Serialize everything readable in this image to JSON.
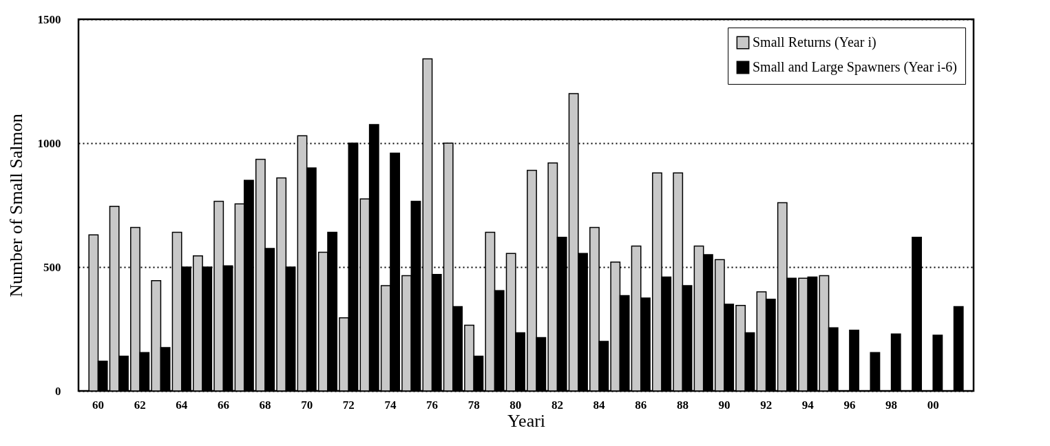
{
  "chart_data": {
    "type": "bar",
    "xlabel": "Yeari",
    "ylabel": "Number of Small Salmon",
    "categories": [
      "60",
      null,
      "62",
      null,
      "64",
      null,
      "66",
      null,
      "68",
      null,
      "70",
      null,
      "72",
      null,
      "74",
      null,
      "76",
      null,
      "78",
      null,
      "80",
      null,
      "82",
      null,
      "84",
      null,
      "86",
      null,
      "88",
      null,
      "90",
      null,
      "92",
      null,
      "94",
      null,
      "96",
      null,
      "98",
      null,
      "00",
      null
    ],
    "series": [
      {
        "name": "Small Returns (Year i)",
        "color": "#c8c8c8",
        "values": [
          630,
          745,
          660,
          445,
          640,
          545,
          765,
          755,
          935,
          860,
          1030,
          560,
          295,
          775,
          425,
          465,
          1340,
          1000,
          265,
          640,
          555,
          890,
          920,
          1200,
          660,
          520,
          585,
          880,
          880,
          585,
          530,
          345,
          400,
          760,
          455,
          465,
          null,
          null,
          null,
          null,
          null,
          null
        ]
      },
      {
        "name": "Small and Large Spawners (Year i-6)",
        "color": "#000000",
        "values": [
          120,
          140,
          155,
          175,
          500,
          500,
          505,
          850,
          575,
          500,
          900,
          640,
          1000,
          1075,
          960,
          765,
          470,
          340,
          140,
          405,
          235,
          215,
          620,
          555,
          200,
          385,
          375,
          460,
          425,
          550,
          350,
          235,
          370,
          455,
          460,
          255,
          245,
          155,
          230,
          620,
          225,
          340
        ]
      }
    ],
    "ylim": [
      0,
      1500
    ],
    "yticks": [
      0,
      500,
      1000,
      1500
    ],
    "grid": "y",
    "legend": "top right"
  }
}
